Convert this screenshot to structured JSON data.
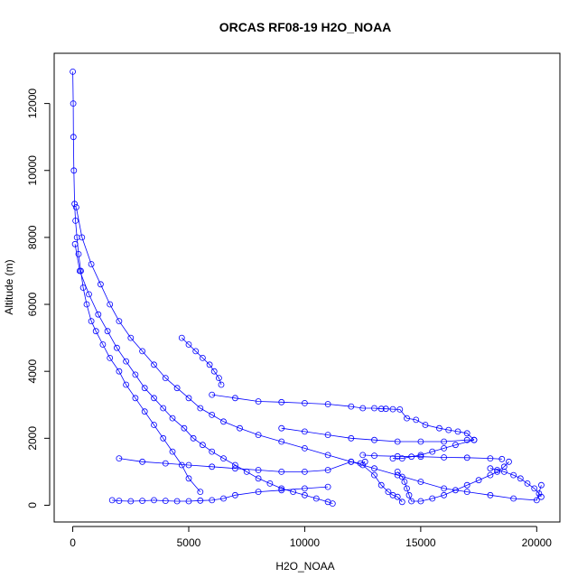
{
  "chart_data": {
    "type": "scatter",
    "title": "ORCAS RF08-19 H2O_NOAA",
    "xlabel": "H2O_NOAA",
    "ylabel": "Altitude (m)",
    "xlim": [
      -800,
      21000
    ],
    "ylim": [
      -500,
      13500
    ],
    "xticks": [
      0,
      5000,
      10000,
      15000,
      20000
    ],
    "yticks": [
      0,
      2000,
      4000,
      6000,
      8000,
      10000,
      12000
    ],
    "xtick_labels": [
      "0",
      "5000",
      "10000",
      "15000",
      "20000"
    ],
    "ytick_labels": [
      "0",
      "2000",
      "4000",
      "6000",
      "8000",
      "10000",
      "12000"
    ],
    "grid": false,
    "marker": "open-circle",
    "connected": true,
    "color": "#0000ff",
    "series": [
      {
        "x": [
          0,
          20,
          30,
          50,
          80,
          120,
          180,
          250,
          350,
          450,
          600,
          800,
          1000,
          1300,
          1600,
          2000,
          2300,
          2700,
          3100,
          3500,
          3900,
          4300,
          4700,
          5000,
          5500
        ],
        "y": [
          12950,
          12000,
          11000,
          10000,
          9000,
          8500,
          8000,
          7500,
          7000,
          6500,
          6000,
          5500,
          5200,
          4800,
          4400,
          4000,
          3600,
          3200,
          2800,
          2400,
          2000,
          1600,
          1200,
          800,
          400
        ]
      },
      {
        "x": [
          150,
          400,
          800,
          1200,
          1600,
          2000,
          2500,
          3000,
          3500,
          4000,
          4500,
          5000,
          5500,
          6000,
          6500,
          7200,
          8000,
          9000,
          10000,
          11000,
          12000,
          13000,
          14000,
          15000,
          16000,
          17000,
          18000,
          19000,
          20000,
          20200
        ],
        "y": [
          8900,
          8000,
          7200,
          6600,
          6000,
          5500,
          5000,
          4600,
          4200,
          3800,
          3500,
          3200,
          2900,
          2700,
          2500,
          2300,
          2100,
          1900,
          1700,
          1500,
          1300,
          1100,
          900,
          700,
          500,
          400,
          300,
          200,
          150,
          600
        ]
      },
      {
        "x": [
          100,
          300,
          700,
          1100,
          1500,
          1900,
          2300,
          2700,
          3100,
          3500,
          3900,
          4300,
          4800,
          5200,
          5600,
          6000,
          6500,
          7000,
          7500,
          8000,
          8500,
          9000,
          9500,
          10000,
          10500,
          11000,
          11200
        ],
        "y": [
          7800,
          7000,
          6300,
          5700,
          5200,
          4700,
          4300,
          3900,
          3500,
          3200,
          2900,
          2600,
          2300,
          2000,
          1800,
          1600,
          1400,
          1200,
          1000,
          800,
          650,
          500,
          400,
          300,
          200,
          100,
          50
        ]
      },
      {
        "x": [
          4700,
          5000,
          5300,
          5600,
          5900,
          6100,
          6300,
          6400
        ],
        "y": [
          5000,
          4800,
          4600,
          4400,
          4200,
          4000,
          3800,
          3600
        ]
      },
      {
        "x": [
          6000,
          7000,
          8000,
          9000,
          10000,
          11000,
          12000,
          12500,
          13000,
          13300,
          13500,
          13800,
          14100,
          14400,
          14800,
          15200,
          15800,
          16200,
          16600,
          17000,
          17300
        ],
        "y": [
          3300,
          3200,
          3100,
          3080,
          3050,
          3020,
          2950,
          2900,
          2900,
          2880,
          2880,
          2870,
          2860,
          2600,
          2550,
          2400,
          2300,
          2250,
          2200,
          2150,
          1950
        ]
      },
      {
        "x": [
          9000,
          10000,
          11000,
          12000,
          13000,
          14000,
          15000,
          16000,
          17000,
          17300,
          16500,
          16000,
          15500,
          15000,
          14600,
          14200,
          13800
        ],
        "y": [
          2300,
          2200,
          2100,
          2000,
          1950,
          1900,
          1900,
          1900,
          1950,
          1950,
          1800,
          1700,
          1600,
          1500,
          1450,
          1400,
          1400
        ]
      },
      {
        "x": [
          2000,
          3000,
          4000,
          5000,
          6000,
          7000,
          8000,
          9000,
          10000,
          11000,
          12000,
          12400,
          12600
        ],
        "y": [
          1400,
          1300,
          1250,
          1200,
          1150,
          1100,
          1050,
          1000,
          1000,
          1050,
          1300,
          1250,
          1300
        ]
      },
      {
        "x": [
          12500,
          13000,
          13300,
          13600,
          13800,
          14000,
          14200
        ],
        "y": [
          1200,
          900,
          600,
          400,
          300,
          250,
          100
        ]
      },
      {
        "x": [
          14000,
          14200,
          14300,
          14400,
          14500,
          14600,
          15000,
          15500,
          16000,
          16500,
          17000,
          17500,
          18000,
          18300,
          18600,
          18800
        ],
        "y": [
          1000,
          850,
          700,
          500,
          300,
          120,
          120,
          200,
          300,
          450,
          600,
          750,
          900,
          1000,
          1150,
          1300
        ]
      },
      {
        "x": [
          12500,
          13000,
          14000,
          15000,
          16000,
          17000,
          18000,
          18500
        ],
        "y": [
          1500,
          1480,
          1460,
          1450,
          1430,
          1420,
          1400,
          1380
        ]
      },
      {
        "x": [
          18000,
          18300,
          18600,
          19000,
          19300,
          19600,
          19900,
          20100,
          20200
        ],
        "y": [
          1100,
          1050,
          1000,
          900,
          800,
          650,
          500,
          350,
          250
        ]
      },
      {
        "x": [
          1700,
          2000,
          2500,
          3000,
          3500,
          4000,
          4500,
          5000,
          5500,
          6000,
          6500,
          7000,
          8000,
          9000,
          10000,
          11000
        ],
        "y": [
          150,
          130,
          120,
          130,
          150,
          130,
          120,
          120,
          140,
          150,
          200,
          300,
          400,
          450,
          500,
          550
        ]
      }
    ]
  }
}
